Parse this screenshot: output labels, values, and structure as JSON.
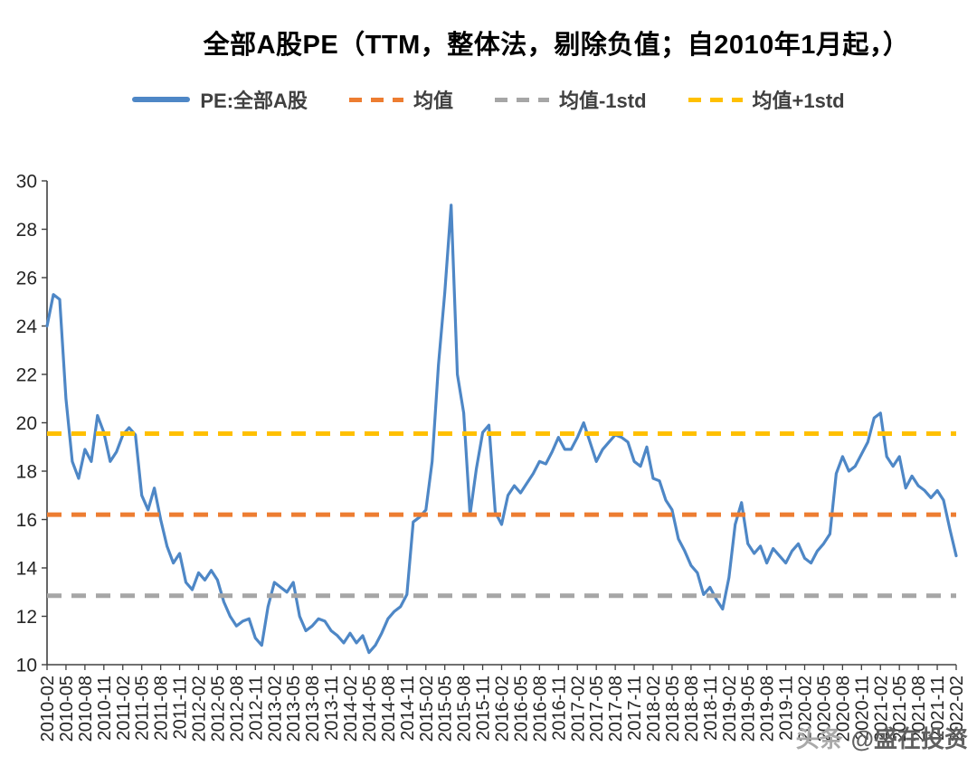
{
  "watermark": {
    "prefix": "头条",
    "handle": "@盛在投资"
  },
  "chart_data": {
    "type": "line",
    "title": "全部A股PE（TTM，整体法，剔除负值；自2010年1月起，）",
    "ylim": [
      10,
      30
    ],
    "ytick_step": 2,
    "grid": false,
    "legend_position": "top",
    "x_start": "2010-02",
    "x_freq": "monthly",
    "xtick_every": 3,
    "x_ticks": [
      "2010-02",
      "2010-05",
      "2010-08",
      "2010-11",
      "2011-02",
      "2011-05",
      "2011-08",
      "2011-11",
      "2012-02",
      "2012-05",
      "2012-08",
      "2012-11",
      "2013-02",
      "2013-05",
      "2013-08",
      "2013-11",
      "2014-02",
      "2014-05",
      "2014-08",
      "2014-11",
      "2015-02",
      "2015-05",
      "2015-08",
      "2015-11",
      "2016-02",
      "2016-05",
      "2016-08",
      "2016-11",
      "2017-02",
      "2017-05",
      "2017-08",
      "2017-11",
      "2018-02",
      "2018-05",
      "2018-08",
      "2018-11",
      "2019-02",
      "2019-05",
      "2019-08",
      "2019-11",
      "2020-02",
      "2020-05",
      "2020-08",
      "2020-11",
      "2021-02",
      "2021-05",
      "2021-08",
      "2021-11",
      "2022-02"
    ],
    "series": [
      {
        "name": "PE:全部A股",
        "color": "#4e87c6",
        "style": "solid",
        "values": [
          24.0,
          25.3,
          25.1,
          21.0,
          18.4,
          17.7,
          18.9,
          18.4,
          20.3,
          19.6,
          18.4,
          18.8,
          19.5,
          19.8,
          19.5,
          17.0,
          16.4,
          17.3,
          16.0,
          14.9,
          14.2,
          14.6,
          13.4,
          13.1,
          13.8,
          13.5,
          13.9,
          13.5,
          12.6,
          12.0,
          11.6,
          11.8,
          11.9,
          11.1,
          10.8,
          12.4,
          13.4,
          13.2,
          13.0,
          13.4,
          12.0,
          11.4,
          11.6,
          11.9,
          11.8,
          11.4,
          11.2,
          10.9,
          11.3,
          10.9,
          11.2,
          10.5,
          10.8,
          11.3,
          11.9,
          12.2,
          12.4,
          12.9,
          15.9,
          16.1,
          16.4,
          18.4,
          22.4,
          25.4,
          29.0,
          22.0,
          20.4,
          16.2,
          18.1,
          19.6,
          19.9,
          16.3,
          15.8,
          17.0,
          17.4,
          17.1,
          17.5,
          17.9,
          18.4,
          18.3,
          18.8,
          19.4,
          18.9,
          18.9,
          19.4,
          20.0,
          19.2,
          18.4,
          18.9,
          19.2,
          19.5,
          19.4,
          19.2,
          18.4,
          18.2,
          19.0,
          17.7,
          17.6,
          16.8,
          16.4,
          15.2,
          14.7,
          14.1,
          13.8,
          12.9,
          13.2,
          12.7,
          12.3,
          13.6,
          15.8,
          16.7,
          15.0,
          14.6,
          14.9,
          14.2,
          14.8,
          14.5,
          14.2,
          14.7,
          15.0,
          14.4,
          14.2,
          14.7,
          15.0,
          15.4,
          17.9,
          18.6,
          18.0,
          18.2,
          18.7,
          19.2,
          20.2,
          20.4,
          18.6,
          18.2,
          18.6,
          17.3,
          17.8,
          17.4,
          17.2,
          16.9,
          17.2,
          16.8,
          15.6,
          14.5
        ]
      },
      {
        "name": "均值",
        "color": "#ed7d31",
        "style": "dashed",
        "value": 16.2
      },
      {
        "name": "均值-1std",
        "color": "#a6a6a6",
        "style": "dashed",
        "value": 12.85
      },
      {
        "name": "均值+1std",
        "color": "#ffc000",
        "style": "dashed",
        "value": 19.55
      }
    ]
  }
}
